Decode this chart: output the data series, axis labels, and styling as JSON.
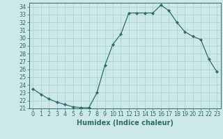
{
  "x": [
    0,
    1,
    2,
    3,
    4,
    5,
    6,
    7,
    8,
    9,
    10,
    11,
    12,
    13,
    14,
    15,
    16,
    17,
    18,
    19,
    20,
    21,
    22,
    23
  ],
  "y": [
    23.5,
    22.8,
    22.2,
    21.8,
    21.5,
    21.2,
    21.1,
    21.1,
    23.0,
    26.5,
    29.2,
    30.5,
    33.2,
    33.2,
    33.2,
    33.2,
    34.2,
    33.5,
    32.0,
    30.8,
    30.2,
    29.8,
    27.3,
    25.7
  ],
  "line_color": "#2e6b6b",
  "marker": "D",
  "marker_size": 2.2,
  "bg_color": "#cde8e8",
  "grid_color": "#a8d4d4",
  "xlabel": "Humidex (Indice chaleur)",
  "ylim": [
    21,
    34.5
  ],
  "xlim": [
    -0.5,
    23.5
  ],
  "yticks": [
    21,
    22,
    23,
    24,
    25,
    26,
    27,
    28,
    29,
    30,
    31,
    32,
    33,
    34
  ],
  "xticks": [
    0,
    1,
    2,
    3,
    4,
    5,
    6,
    7,
    8,
    9,
    10,
    11,
    12,
    13,
    14,
    15,
    16,
    17,
    18,
    19,
    20,
    21,
    22,
    23
  ],
  "tick_color": "#2e6b6b",
  "label_fontsize": 7,
  "tick_fontsize": 5.8,
  "line_width": 0.9
}
